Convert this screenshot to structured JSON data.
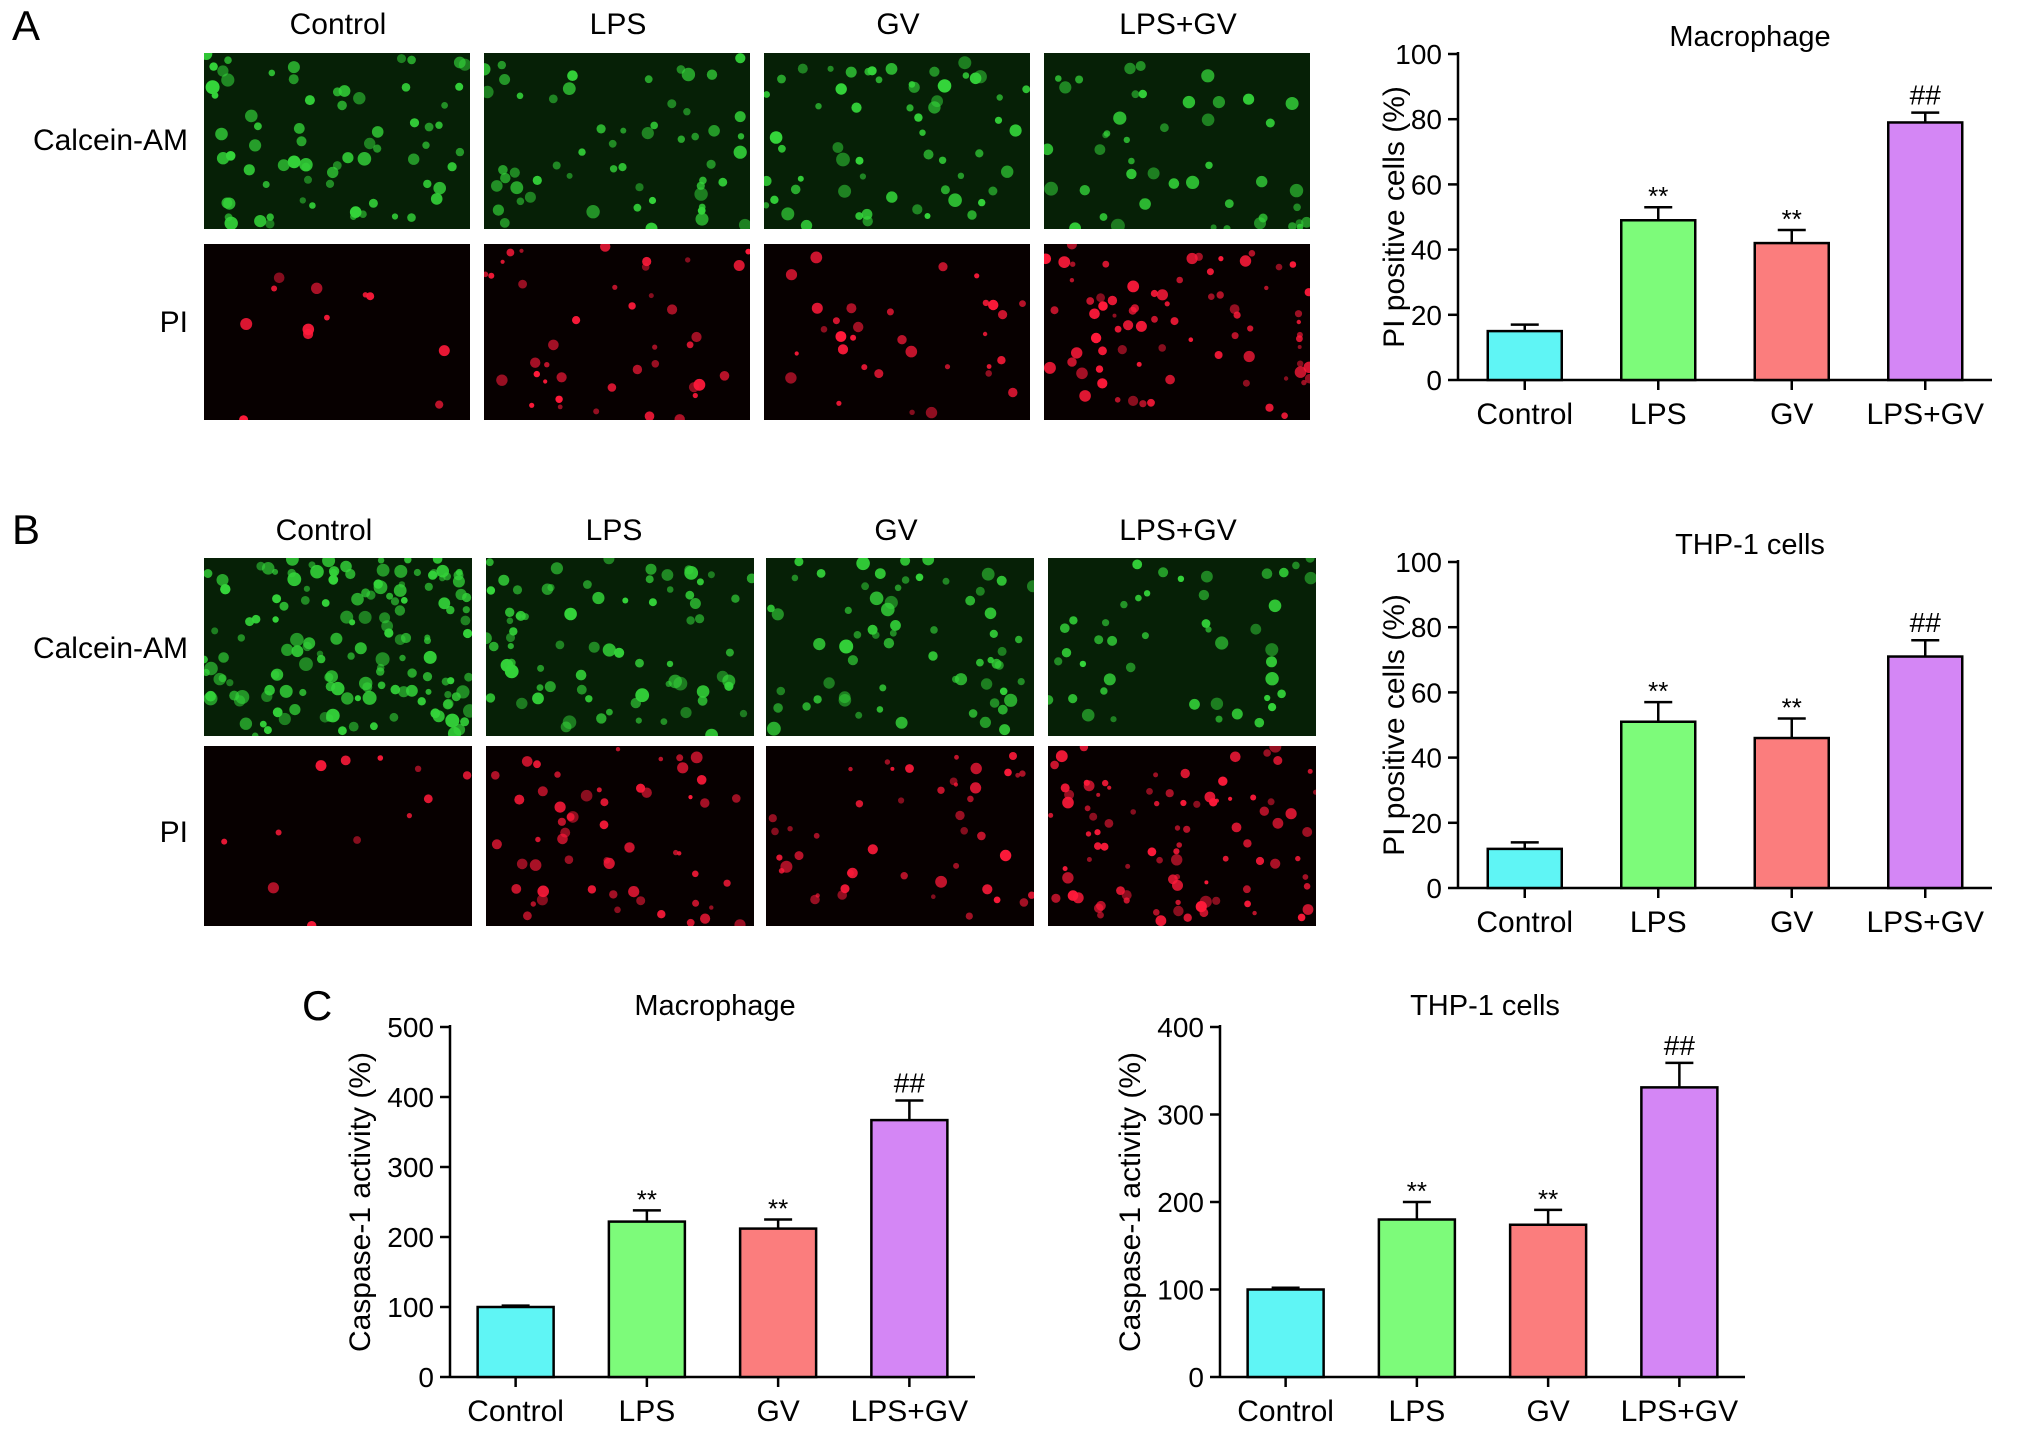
{
  "panels": [
    {
      "letter": "A",
      "column_labels": [
        "Control",
        "LPS",
        "GV",
        "LPS+GV"
      ],
      "row_labels": [
        "Calcein-AM",
        "PI"
      ]
    },
    {
      "letter": "B",
      "column_labels": [
        "Control",
        "LPS",
        "GV",
        "LPS+GV"
      ],
      "row_labels": [
        "Calcein-AM",
        "PI"
      ]
    },
    {
      "letter": "C"
    }
  ],
  "colors": {
    "Control": "#5ff5f5",
    "LPS": "#7dfb7a",
    "GV": "#fb7d7d",
    "LPS+GV": "#d486f5",
    "calcein": "#34d43a",
    "pi": "#ff1a3a"
  },
  "chart_data": [
    {
      "type": "bar",
      "title": "Macrophage",
      "ylabel": "PI positive cells (%)",
      "categories": [
        "Control",
        "LPS",
        "GV",
        "LPS+GV"
      ],
      "values": [
        15,
        49,
        42,
        79
      ],
      "errors": [
        2,
        4,
        4,
        3
      ],
      "annotations": [
        "",
        "**",
        "**",
        "##"
      ],
      "ylim": [
        0,
        100
      ],
      "yticks": [
        0,
        20,
        40,
        60,
        80,
        100
      ]
    },
    {
      "type": "bar",
      "title": "THP-1 cells",
      "ylabel": "PI positive cells (%)",
      "categories": [
        "Control",
        "LPS",
        "GV",
        "LPS+GV"
      ],
      "values": [
        12,
        51,
        46,
        71
      ],
      "errors": [
        2,
        6,
        6,
        5
      ],
      "annotations": [
        "",
        "**",
        "**",
        "##"
      ],
      "ylim": [
        0,
        100
      ],
      "yticks": [
        0,
        20,
        40,
        60,
        80,
        100
      ]
    },
    {
      "type": "bar",
      "title": "Macrophage",
      "ylabel": "Caspase-1 activity (%)",
      "categories": [
        "Control",
        "LPS",
        "GV",
        "LPS+GV"
      ],
      "values": [
        100,
        222,
        212,
        367
      ],
      "errors": [
        2,
        16,
        13,
        28
      ],
      "annotations": [
        "",
        "**",
        "**",
        "##"
      ],
      "ylim": [
        0,
        500
      ],
      "yticks": [
        0,
        100,
        200,
        300,
        400,
        500
      ]
    },
    {
      "type": "bar",
      "title": "THP-1 cells",
      "ylabel": "Caspase-1 activity (%)",
      "categories": [
        "Control",
        "LPS",
        "GV",
        "LPS+GV"
      ],
      "values": [
        100,
        180,
        174,
        331
      ],
      "errors": [
        2,
        20,
        17,
        28
      ],
      "annotations": [
        "",
        "**",
        "**",
        "##"
      ],
      "ylim": [
        0,
        400
      ],
      "yticks": [
        0,
        100,
        200,
        300,
        400
      ]
    }
  ]
}
